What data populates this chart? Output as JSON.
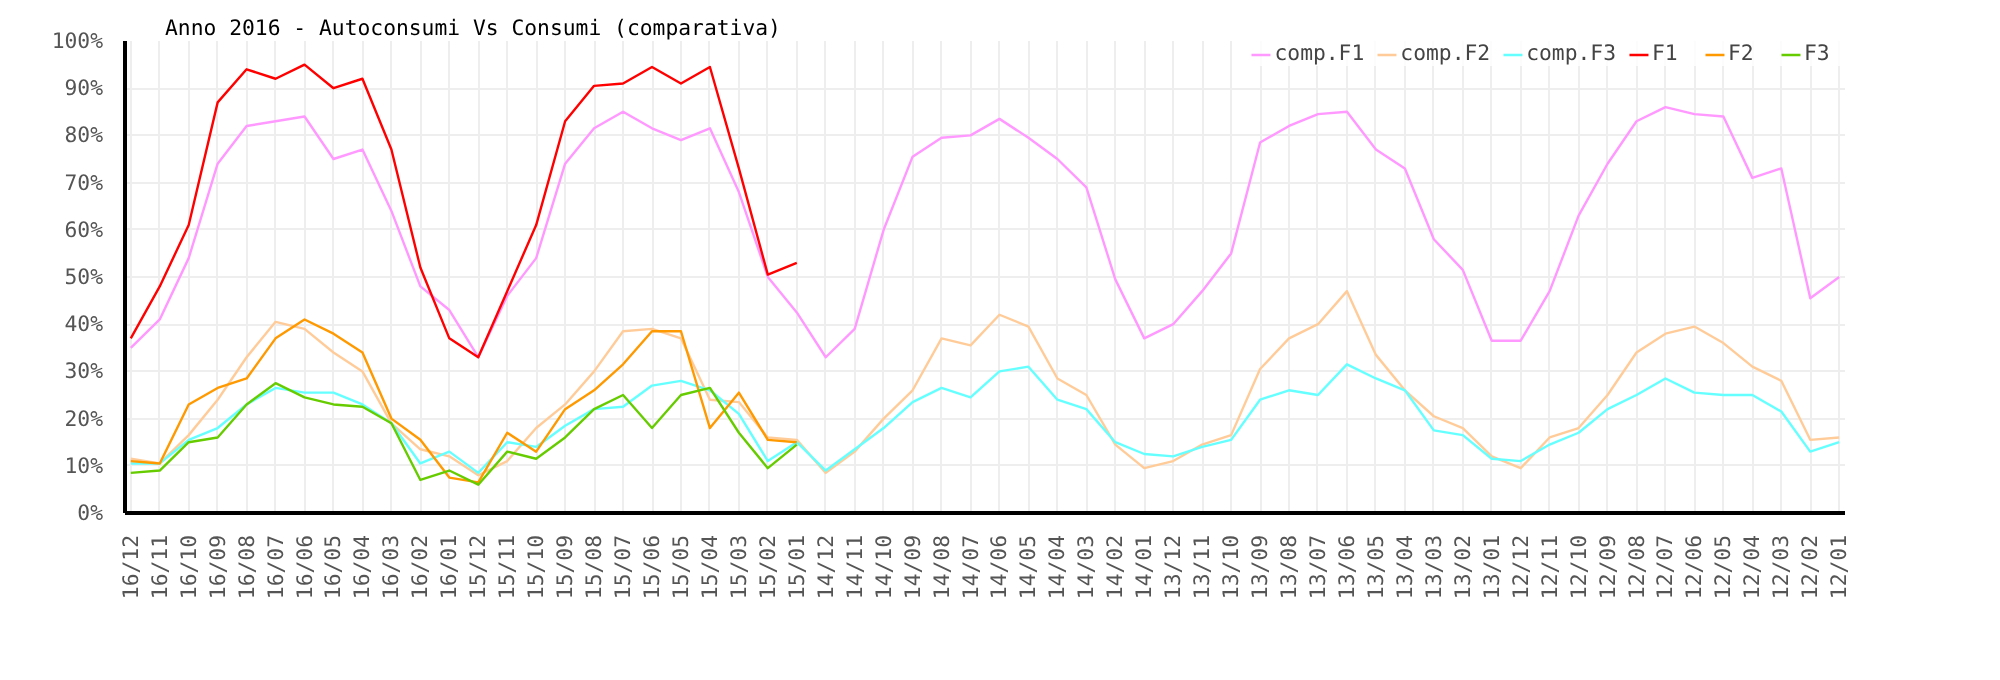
{
  "chart_data": {
    "type": "line",
    "title": "Anno 2016 - Autoconsumi Vs Consumi (comparativa)",
    "categories": [
      "16/12",
      "16/11",
      "16/10",
      "16/09",
      "16/08",
      "16/07",
      "16/06",
      "16/05",
      "16/04",
      "16/03",
      "16/02",
      "16/01",
      "15/12",
      "15/11",
      "15/10",
      "15/09",
      "15/08",
      "15/07",
      "15/06",
      "15/05",
      "15/04",
      "15/03",
      "15/02",
      "15/01",
      "14/12",
      "14/11",
      "14/10",
      "14/09",
      "14/08",
      "14/07",
      "14/06",
      "14/05",
      "14/04",
      "14/03",
      "14/02",
      "14/01",
      "13/12",
      "13/11",
      "13/10",
      "13/09",
      "13/08",
      "13/07",
      "13/06",
      "13/05",
      "13/04",
      "13/03",
      "13/02",
      "13/01",
      "12/12",
      "12/11",
      "12/10",
      "12/09",
      "12/08",
      "12/07",
      "12/06",
      "12/05",
      "12/04",
      "12/03",
      "12/02",
      "12/01"
    ],
    "series": [
      {
        "name": "comp.F1",
        "color": "#ff99ff",
        "values": [
          35,
          41,
          54,
          74,
          82,
          83,
          84,
          75,
          77,
          64,
          48,
          43,
          33,
          46,
          54,
          74,
          81.5,
          85,
          81.5,
          79,
          81.5,
          68,
          50,
          42.5,
          33,
          39,
          60,
          75.5,
          79.5,
          80,
          83.5,
          79.5,
          75,
          69,
          49.5,
          37,
          40,
          47,
          55,
          78.5,
          82,
          84.5,
          85,
          77,
          73,
          58,
          51.5,
          36.5,
          36.5,
          47,
          63,
          74,
          83,
          86,
          84.5,
          84,
          71,
          73,
          45.5,
          50
        ]
      },
      {
        "name": "comp.F2",
        "color": "#ffcc99",
        "values": [
          11.5,
          10.5,
          16.5,
          24,
          33,
          40.5,
          39,
          34,
          30,
          19,
          13.5,
          12,
          8,
          11,
          18,
          23,
          30,
          38.5,
          39,
          37,
          24,
          23.5,
          16,
          15.5,
          8.5,
          13,
          20,
          26,
          37,
          35.5,
          42,
          39.5,
          28.5,
          25,
          14.5,
          9.5,
          11,
          14.5,
          16.5,
          30.5,
          37,
          40,
          47,
          33.5,
          26,
          20.5,
          18,
          12,
          9.5,
          16,
          18,
          25,
          34,
          38,
          39.5,
          36,
          31,
          28,
          15.5,
          16
        ]
      },
      {
        "name": "comp.F3",
        "color": "#66ffff",
        "values": [
          10.5,
          10.5,
          15.5,
          18,
          23,
          26.5,
          25.5,
          25.5,
          23,
          19,
          10.5,
          13,
          8.5,
          15,
          14,
          18.5,
          22,
          22.5,
          27,
          28,
          26,
          21,
          11,
          15,
          9,
          13.5,
          18,
          23.5,
          26.5,
          24.5,
          30,
          31,
          24,
          22,
          15,
          12.5,
          12,
          14,
          15.5,
          24,
          26,
          25,
          31.5,
          28.5,
          26,
          17.5,
          16.5,
          11.5,
          11,
          14.5,
          17,
          22,
          25,
          28.5,
          25.5,
          25,
          25,
          21.5,
          13,
          15
        ]
      },
      {
        "name": "F1",
        "color": "#ff0000",
        "values": [
          37,
          48,
          61,
          87,
          94,
          92,
          95,
          90,
          92,
          77,
          52,
          37,
          33,
          47,
          61,
          83,
          90.5,
          91,
          94.5,
          91,
          94.5,
          73,
          50.5,
          53,
          null,
          null,
          null,
          null,
          null,
          null,
          null,
          null,
          null,
          null,
          null,
          null,
          null,
          null,
          null,
          null,
          null,
          null,
          null,
          null,
          null,
          null,
          null,
          null,
          null,
          null,
          null,
          null,
          null,
          null,
          null,
          null,
          null,
          null,
          null,
          null
        ]
      },
      {
        "name": "F2",
        "color": "#ff9900",
        "values": [
          11,
          10.5,
          23,
          26.5,
          28.5,
          37,
          41,
          38,
          34,
          20,
          15.5,
          7.5,
          6.5,
          17,
          13,
          22,
          26,
          31.5,
          38.5,
          38.5,
          18,
          25.5,
          15.5,
          15,
          null,
          null,
          null,
          null,
          null,
          null,
          null,
          null,
          null,
          null,
          null,
          null,
          null,
          null,
          null,
          null,
          null,
          null,
          null,
          null,
          null,
          null,
          null,
          null,
          null,
          null,
          null,
          null,
          null,
          null,
          null,
          null,
          null,
          null,
          null,
          null
        ]
      },
      {
        "name": "F3",
        "color": "#66cc00",
        "values": [
          8.5,
          9,
          15,
          16,
          23,
          27.5,
          24.5,
          23,
          22.5,
          19,
          7,
          9,
          6,
          13,
          11.5,
          16,
          22,
          25,
          18,
          25,
          26.5,
          17,
          9.5,
          14.5,
          null,
          null,
          null,
          null,
          null,
          null,
          null,
          null,
          null,
          null,
          null,
          null,
          null,
          null,
          null,
          null,
          null,
          null,
          null,
          null,
          null,
          null,
          null,
          null,
          null,
          null,
          null,
          null,
          null,
          null,
          null,
          null,
          null,
          null,
          null,
          null
        ]
      }
    ],
    "ylim": [
      0,
      100
    ],
    "yticks": [
      {
        "value": 0,
        "label": "0%"
      },
      {
        "value": 10,
        "label": "10%"
      },
      {
        "value": 20,
        "label": "20%"
      },
      {
        "value": 30,
        "label": "30%"
      },
      {
        "value": 40,
        "label": "40%"
      },
      {
        "value": 50,
        "label": "50%"
      },
      {
        "value": 60,
        "label": "60%"
      },
      {
        "value": 70,
        "label": "70%"
      },
      {
        "value": 80,
        "label": "80%"
      },
      {
        "value": 90,
        "label": "90%"
      },
      {
        "value": 100,
        "label": "100%"
      }
    ],
    "grid": true,
    "legend": "top right",
    "marker": "none",
    "line_style": "solid"
  }
}
